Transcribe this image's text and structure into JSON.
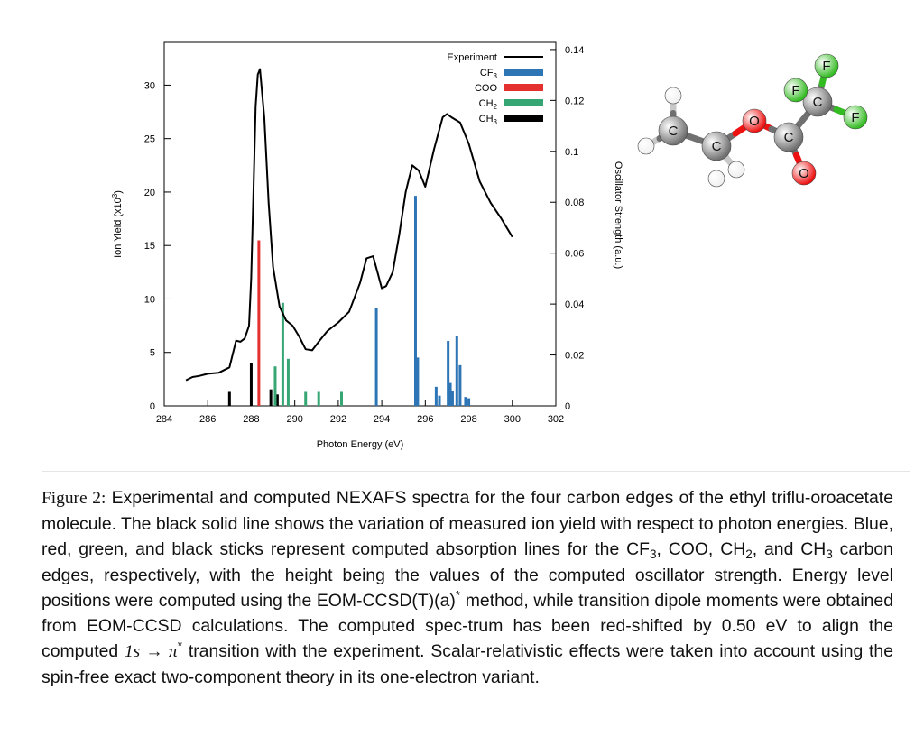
{
  "chart_data": {
    "type": "line+stick",
    "x_axis": {
      "label": "Photon Energy (eV)",
      "range": [
        284,
        302
      ],
      "ticks": [
        "284",
        "286",
        "288",
        "290",
        "292",
        "294",
        "296",
        "298",
        "300",
        "302"
      ]
    },
    "y_left": {
      "label": "Ion Yield (x10",
      "label_sup": "3",
      "label_end": ")",
      "range": [
        0,
        34
      ],
      "ticks": [
        "0",
        "5",
        "10",
        "15",
        "20",
        "25",
        "30"
      ]
    },
    "y_right": {
      "label": "Oscillator Strength (a.u.)",
      "range": [
        0,
        0.1428
      ],
      "ticks": [
        "0",
        "0.02",
        "0.04",
        "0.06",
        "0.08",
        "0.1",
        "0.12",
        "0.14"
      ]
    },
    "legend": {
      "placement": "top-right",
      "entries": [
        {
          "key": "experiment",
          "label": "Experiment",
          "label_sub": "",
          "color": "#000000"
        },
        {
          "key": "cf3",
          "label": "CF",
          "label_sub": "3",
          "color": "#2e75b6"
        },
        {
          "key": "coo",
          "label": "COO",
          "label_sub": "",
          "color": "#e53030"
        },
        {
          "key": "ch2",
          "label": "CH",
          "label_sub": "2",
          "color": "#36a674"
        },
        {
          "key": "ch3",
          "label": "CH",
          "label_sub": "3",
          "color": "#000000"
        }
      ]
    },
    "experiment": {
      "x": [
        285.0,
        285.3,
        285.6,
        286.0,
        286.5,
        287.0,
        287.3,
        287.5,
        287.7,
        287.9,
        288.0,
        288.1,
        288.2,
        288.3,
        288.4,
        288.6,
        288.8,
        289.0,
        289.3,
        289.6,
        289.9,
        290.2,
        290.5,
        290.8,
        291.1,
        291.5,
        292.0,
        292.5,
        293.0,
        293.3,
        293.6,
        293.8,
        294.0,
        294.2,
        294.5,
        294.8,
        295.1,
        295.4,
        295.7,
        296.0,
        296.4,
        296.8,
        297.0,
        297.2,
        297.6,
        298.0,
        298.5,
        299.0,
        299.5,
        300.0
      ],
      "y": [
        2.4,
        2.7,
        2.8,
        3.0,
        3.1,
        3.6,
        6.1,
        6.0,
        6.3,
        7.5,
        12.0,
        20.0,
        28.0,
        31.0,
        31.5,
        27.0,
        19.0,
        13.0,
        9.3,
        8.0,
        7.5,
        6.5,
        5.3,
        5.2,
        6.0,
        7.0,
        7.8,
        8.8,
        11.5,
        13.8,
        14.0,
        12.5,
        11.0,
        11.2,
        12.5,
        16.0,
        20.0,
        22.5,
        22.0,
        20.5,
        24.0,
        27.0,
        27.3,
        27.0,
        26.5,
        24.5,
        21.0,
        19.0,
        17.5,
        15.8
      ]
    },
    "sticks": [
      {
        "series": "ch3",
        "x": [
          287.0,
          288.0,
          288.9,
          289.2
        ],
        "y": [
          0.0055,
          0.017,
          0.0065,
          0.0045
        ]
      },
      {
        "series": "coo",
        "x": [
          288.35
        ],
        "y": [
          0.065
        ]
      },
      {
        "series": "ch2",
        "x": [
          289.1,
          289.45,
          289.7,
          290.5,
          291.1,
          292.15
        ],
        "y": [
          0.0155,
          0.0405,
          0.0185,
          0.0055,
          0.0055,
          0.0055
        ]
      },
      {
        "series": "cf3",
        "x": [
          293.75,
          295.55,
          295.65,
          296.5,
          296.65,
          297.05,
          297.15,
          297.25,
          297.45,
          297.6,
          297.85,
          298.0
        ],
        "y": [
          0.0385,
          0.0825,
          0.019,
          0.0075,
          0.004,
          0.0255,
          0.009,
          0.006,
          0.0275,
          0.016,
          0.0035,
          0.003
        ]
      }
    ]
  },
  "molecule": {
    "atoms": [
      {
        "label": "",
        "type": "H"
      },
      {
        "label": "",
        "type": "H"
      },
      {
        "label": "",
        "type": "H"
      },
      {
        "label": "C",
        "type": "C"
      },
      {
        "label": "",
        "type": "H"
      },
      {
        "label": "",
        "type": "H"
      },
      {
        "label": "C",
        "type": "C"
      },
      {
        "label": "O",
        "type": "O"
      },
      {
        "label": "C",
        "type": "C"
      },
      {
        "label": "O",
        "type": "O"
      },
      {
        "label": "C",
        "type": "C"
      },
      {
        "label": "F",
        "type": "F"
      },
      {
        "label": "F",
        "type": "F"
      },
      {
        "label": "F",
        "type": "F"
      }
    ],
    "colors": {
      "C": "#707070",
      "H": "#f0f0f0",
      "O": "#ee1111",
      "F": "#33bb22"
    }
  },
  "caption": {
    "label": "Figure 2:",
    "t1": " Experimental and computed NEXAFS spectra for the four carbon edges of the ethyl triflu-oroacetate molecule. The black solid line shows the variation of measured ion yield with respect to photon energies. Blue, red, green, and black sticks represent computed absorption lines for the CF",
    "s1": "3",
    "t2": ", COO, CH",
    "s2": "2",
    "t3": ", and CH",
    "s3": "3",
    "t4": " carbon edges, respectively, with the height being the values of the computed oscillator strength. Energy level positions were computed using the EOM-CCSD(T)(a)",
    "sup1": "*",
    "t5": " method, while transition dipole moments were obtained from EOM-CCSD calculations. The computed spec-trum has been red-shifted by 0.50 eV to align the computed ",
    "math1": "1s → π",
    "sup2": "*",
    "t6": " transition with the experiment. Scalar-relativistic effects were taken into account using the spin-free exact two-component theory in its one-electron variant."
  }
}
